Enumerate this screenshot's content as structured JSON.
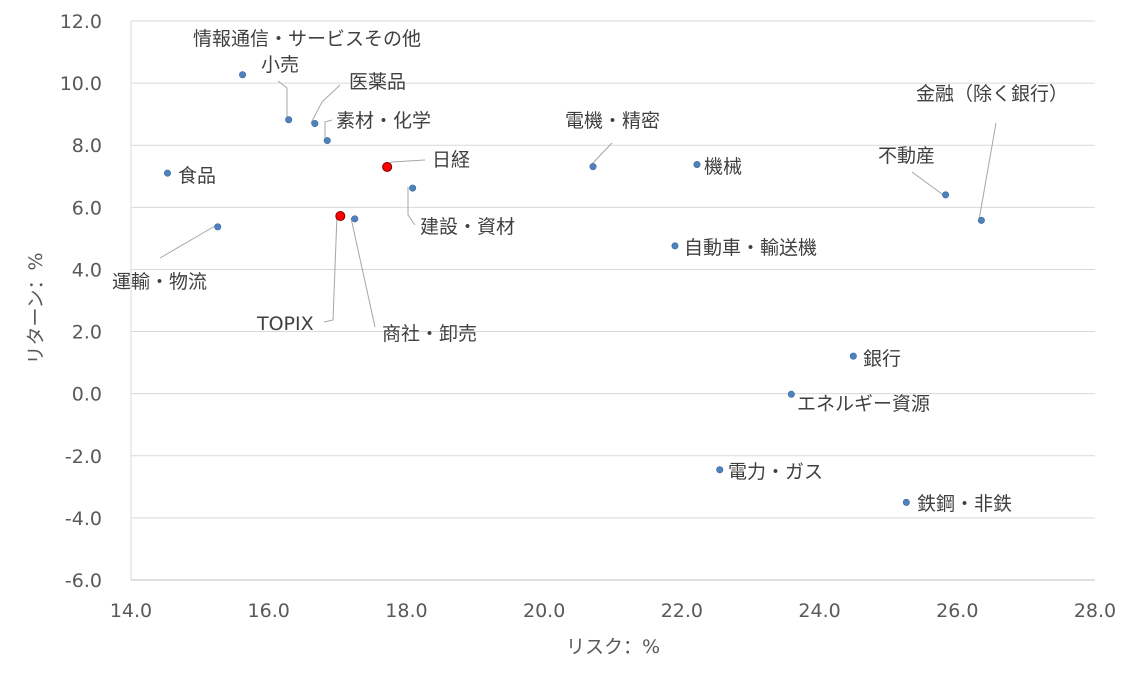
{
  "chart_data": {
    "type": "scatter",
    "title": "",
    "xlabel": "リスク：%",
    "ylabel": "リターン：%",
    "xlim": [
      14.0,
      28.0
    ],
    "ylim": [
      -6.0,
      12.0
    ],
    "x_ticks": [
      "14.0",
      "16.0",
      "18.0",
      "20.0",
      "22.0",
      "24.0",
      "26.0",
      "28.0"
    ],
    "y_ticks": [
      "12.0",
      "10.0",
      "8.0",
      "6.0",
      "4.0",
      "2.0",
      "0.0",
      "-2.0",
      "-4.0",
      "-6.0"
    ],
    "grid": true,
    "colors": {
      "sector": "#4f81bd",
      "benchmark": "#ff0000"
    },
    "points": [
      {
        "name": "情報通信・サービスその他",
        "x": 15.62,
        "y": 10.27,
        "group": "sector"
      },
      {
        "name": "小売",
        "x": 16.29,
        "y": 8.82,
        "group": "sector"
      },
      {
        "name": "医薬品",
        "x": 16.67,
        "y": 8.7,
        "group": "sector"
      },
      {
        "name": "素材・化学",
        "x": 16.85,
        "y": 8.15,
        "group": "sector"
      },
      {
        "name": "食品",
        "x": 14.53,
        "y": 7.1,
        "group": "sector"
      },
      {
        "name": "運輸・物流",
        "x": 15.26,
        "y": 5.37,
        "group": "sector"
      },
      {
        "name": "日経",
        "x": 17.72,
        "y": 7.3,
        "group": "benchmark"
      },
      {
        "name": "TOPIX",
        "x": 17.04,
        "y": 5.72,
        "group": "benchmark"
      },
      {
        "name": "商社・卸売",
        "x": 17.25,
        "y": 5.63,
        "group": "sector"
      },
      {
        "name": "建設・資材",
        "x": 18.09,
        "y": 6.62,
        "group": "sector"
      },
      {
        "name": "電機・精密",
        "x": 20.71,
        "y": 7.31,
        "group": "sector"
      },
      {
        "name": "機械",
        "x": 22.22,
        "y": 7.38,
        "group": "sector"
      },
      {
        "name": "自動車・輸送機",
        "x": 21.9,
        "y": 4.76,
        "group": "sector"
      },
      {
        "name": "金融（除く銀行）",
        "x": 26.35,
        "y": 5.58,
        "group": "sector"
      },
      {
        "name": "不動産",
        "x": 25.83,
        "y": 6.4,
        "group": "sector"
      },
      {
        "name": "銀行",
        "x": 24.49,
        "y": 1.21,
        "group": "sector"
      },
      {
        "name": "エネルギー資源",
        "x": 23.59,
        "y": -0.02,
        "group": "sector"
      },
      {
        "name": "電力・ガス",
        "x": 22.55,
        "y": -2.45,
        "group": "sector"
      },
      {
        "name": "鉄鋼・非鉄",
        "x": 25.26,
        "y": -3.5,
        "group": "sector"
      }
    ]
  }
}
